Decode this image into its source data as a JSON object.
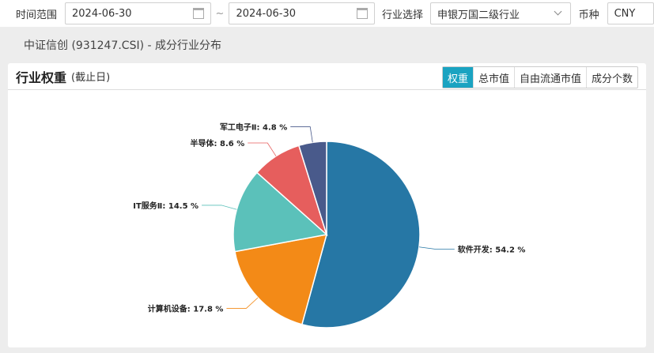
{
  "filters": {
    "time_label": "时间范围",
    "start_date": "2024-06-30",
    "separator": "~",
    "end_date": "2024-06-30",
    "industry_label": "行业选择",
    "industry_value": "申银万国二级行业",
    "currency_label": "币种",
    "currency_value": "CNY"
  },
  "subtitle": "中证信创 (931247.CSI) - 成分行业分布",
  "card": {
    "title": "行业权重",
    "subtitle": "(截止日)",
    "tabs": [
      {
        "label": "权重",
        "active": true
      },
      {
        "label": "总市值"
      },
      {
        "label": "自由流通市值"
      },
      {
        "label": "成分个数"
      }
    ]
  },
  "chart_data": {
    "type": "pie",
    "categories": [
      "软件开发",
      "计算机设备",
      "IT服务Ⅱ",
      "半导体",
      "军工电子Ⅱ"
    ],
    "values": [
      54.2,
      17.8,
      14.5,
      8.6,
      4.8
    ],
    "labels": [
      "软件开发: 54.2 %",
      "计算机设备: 17.8 %",
      "IT服务Ⅱ: 14.5 %",
      "半导体: 8.6 %",
      "军工电子Ⅱ: 4.8 %"
    ],
    "colors": [
      "#2677a5",
      "#f38a17",
      "#5bc1ba",
      "#e65e5d",
      "#495a8b"
    ]
  }
}
